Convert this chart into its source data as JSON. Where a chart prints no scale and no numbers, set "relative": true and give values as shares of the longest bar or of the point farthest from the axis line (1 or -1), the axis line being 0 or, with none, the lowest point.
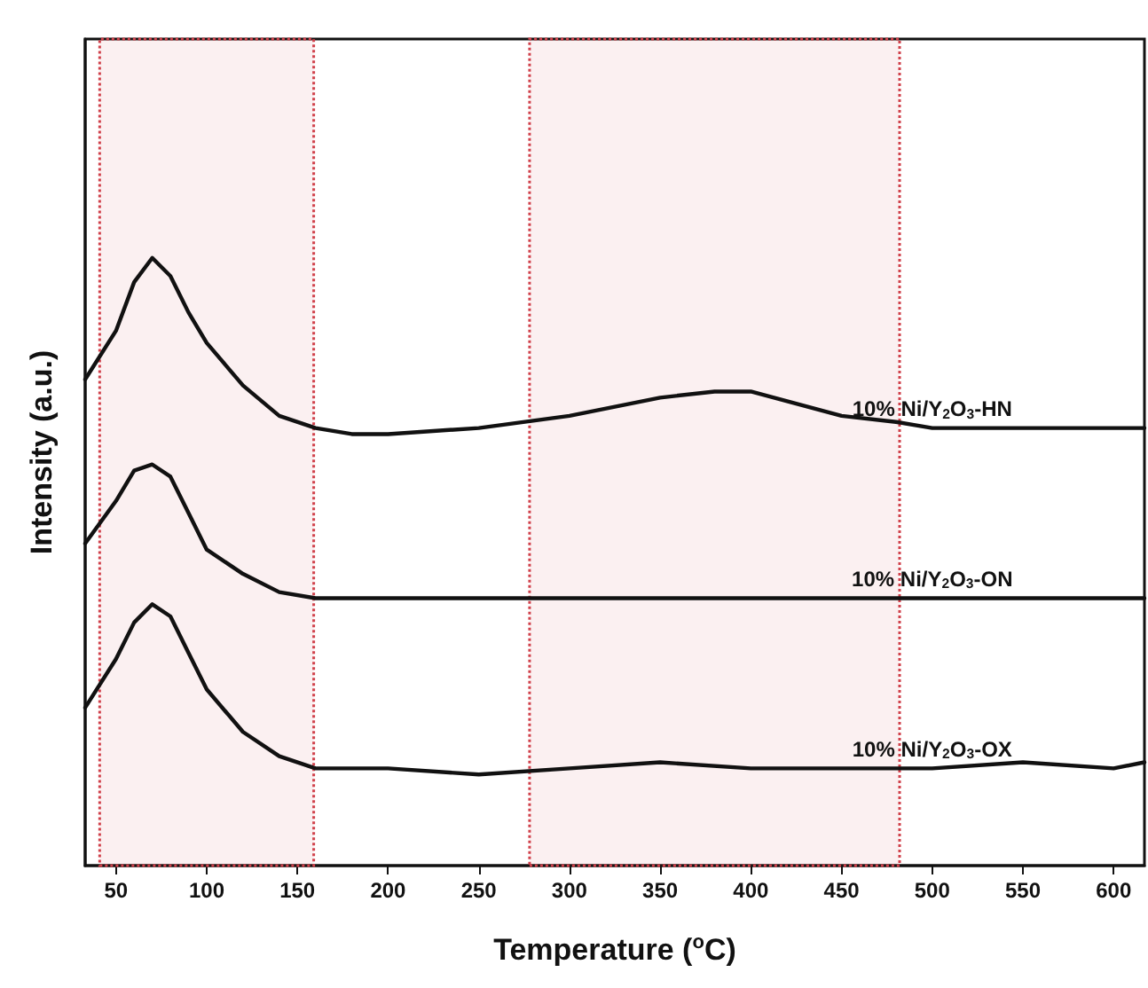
{
  "chart_data": {
    "type": "line",
    "relative": true,
    "xlabel": "Temperature ($^{o}$C)",
    "ylabel": "Intensity (a.u.)",
    "xlim": [
      33,
      617
    ],
    "xticks": [
      50,
      100,
      150,
      200,
      250,
      300,
      350,
      400,
      450,
      500,
      550,
      600
    ],
    "grid": false,
    "legend": false,
    "marker": "none",
    "line_style": "solid",
    "series": [
      {
        "name": "10% Ni/Y$_{2}$O$_{3}$-HN",
        "color": "#111111",
        "x": [
          33,
          50,
          60,
          70,
          80,
          90,
          100,
          120,
          140,
          160,
          180,
          200,
          250,
          300,
          350,
          380,
          400,
          450,
          480,
          500,
          550,
          600,
          617
        ],
        "values": [
          0.8,
          0.88,
          0.96,
          1.0,
          0.97,
          0.91,
          0.86,
          0.79,
          0.74,
          0.72,
          0.71,
          0.71,
          0.72,
          0.74,
          0.77,
          0.78,
          0.78,
          0.74,
          0.73,
          0.72,
          0.72,
          0.72,
          0.72
        ]
      },
      {
        "name": "10% Ni/Y$_{2}$O$_{3}$-ON",
        "color": "#111111",
        "x": [
          33,
          50,
          60,
          70,
          80,
          90,
          100,
          120,
          140,
          160,
          200,
          250,
          300,
          350,
          400,
          450,
          500,
          550,
          600,
          617
        ],
        "values": [
          0.53,
          0.6,
          0.65,
          0.66,
          0.64,
          0.58,
          0.52,
          0.48,
          0.45,
          0.44,
          0.44,
          0.44,
          0.44,
          0.44,
          0.44,
          0.44,
          0.44,
          0.44,
          0.44,
          0.44
        ]
      },
      {
        "name": "10% Ni/Y$_{2}$O$_{3}$-OX",
        "color": "#111111",
        "x": [
          33,
          50,
          60,
          70,
          80,
          90,
          100,
          120,
          140,
          160,
          200,
          250,
          300,
          350,
          400,
          450,
          500,
          550,
          600,
          617
        ],
        "values": [
          0.26,
          0.34,
          0.4,
          0.43,
          0.41,
          0.35,
          0.29,
          0.22,
          0.18,
          0.16,
          0.16,
          0.15,
          0.16,
          0.17,
          0.16,
          0.16,
          0.16,
          0.17,
          0.16,
          0.17
        ]
      }
    ],
    "bands": [
      {
        "axis": "x",
        "from": 41,
        "to": 159,
        "color": "#d0404a"
      },
      {
        "axis": "x",
        "from": 278,
        "to": 482,
        "color": "#d0404a"
      }
    ]
  }
}
